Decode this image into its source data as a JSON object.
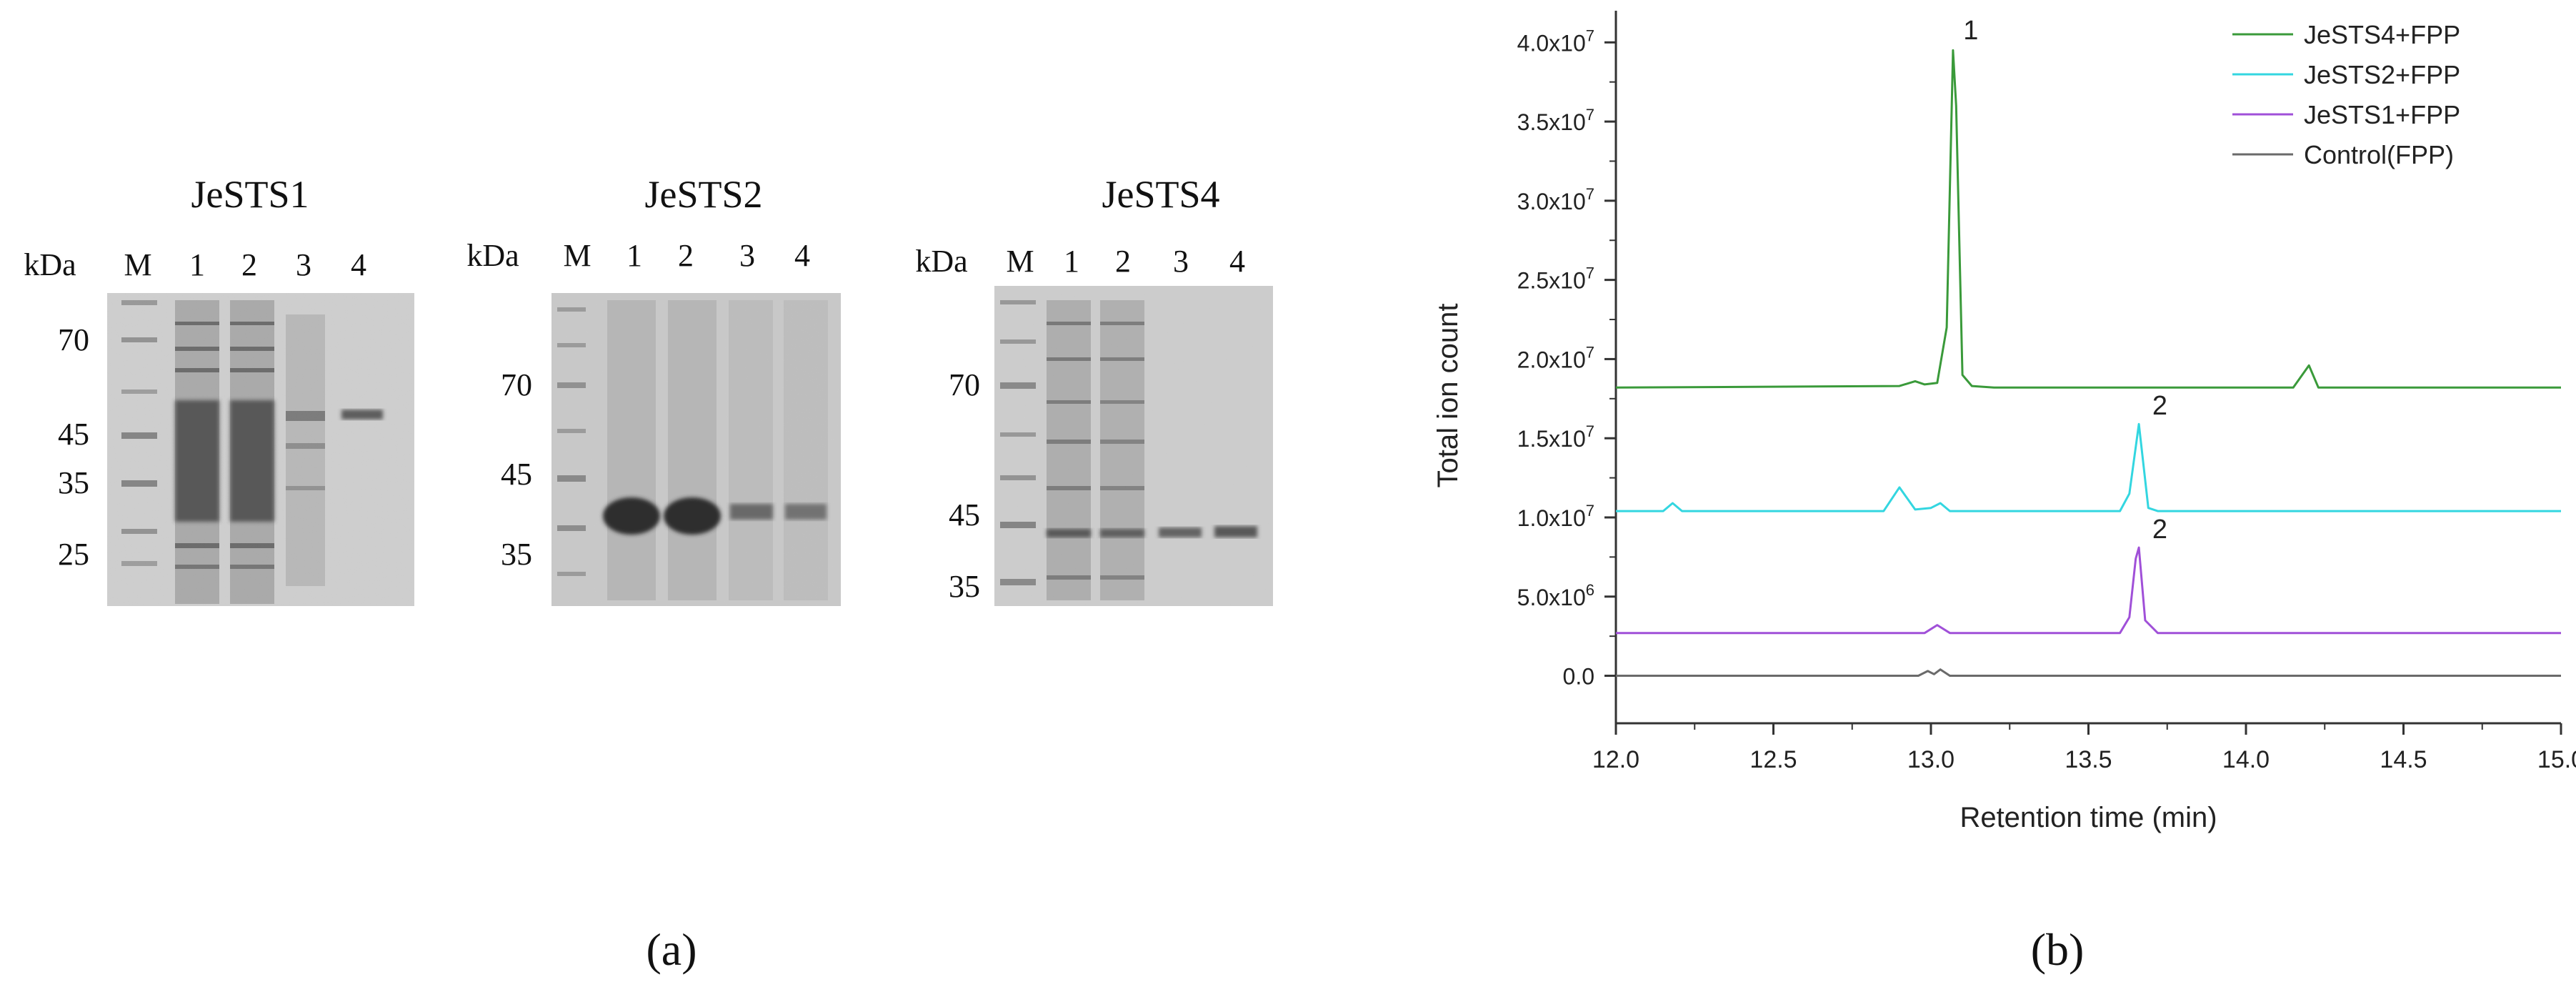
{
  "panel_a": {
    "caption": "(a)",
    "gels": [
      {
        "title": "JeSTS1",
        "unit": "kDa",
        "lanes": [
          "M",
          "1",
          "2",
          "3",
          "4"
        ],
        "markers": [
          "70",
          "45",
          "35",
          "25"
        ]
      },
      {
        "title": "JeSTS2",
        "unit": "kDa",
        "lanes": [
          "M",
          "1",
          "2",
          "3",
          "4"
        ],
        "markers": [
          "70",
          "45",
          "35"
        ]
      },
      {
        "title": "JeSTS4",
        "unit": "kDa",
        "lanes": [
          "M",
          "1",
          "2",
          "3",
          "4"
        ],
        "markers": [
          "70",
          "45",
          "35"
        ]
      }
    ]
  },
  "panel_b": {
    "caption": "(b)"
  },
  "chart_data": {
    "type": "line",
    "title": "",
    "xlabel": "Retention time (min)",
    "ylabel": "Total ion count",
    "xlim": [
      12.0,
      15.0
    ],
    "ylim": [
      -3000000.0,
      42000000.0
    ],
    "x_ticks": [
      "12.0",
      "12.5",
      "13.0",
      "13.5",
      "14.0",
      "14.5",
      "15.0"
    ],
    "y_ticks": [
      {
        "value": 0,
        "mantissa": "0.0",
        "exp": ""
      },
      {
        "value": 5000000,
        "mantissa": "5.0x10",
        "exp": "6"
      },
      {
        "value": 10000000,
        "mantissa": "1.0x10",
        "exp": "7"
      },
      {
        "value": 15000000,
        "mantissa": "1.5x10",
        "exp": "7"
      },
      {
        "value": 20000000,
        "mantissa": "2.0x10",
        "exp": "7"
      },
      {
        "value": 25000000,
        "mantissa": "2.5x10",
        "exp": "7"
      },
      {
        "value": 30000000,
        "mantissa": "3.0x10",
        "exp": "7"
      },
      {
        "value": 35000000,
        "mantissa": "3.5x10",
        "exp": "7"
      },
      {
        "value": 40000000,
        "mantissa": "4.0x10",
        "exp": "7"
      }
    ],
    "legend_position": "top-right",
    "series": [
      {
        "name": "JeSTS4+FPP",
        "color": "#3a9a3a",
        "x": [
          12.0,
          12.9,
          12.95,
          12.98,
          13.02,
          13.05,
          13.07,
          13.08,
          13.1,
          13.13,
          13.2,
          14.15,
          14.2,
          14.23,
          15.0
        ],
        "y": [
          18200000,
          18300000,
          18600000,
          18400000,
          18500000,
          22000000,
          39500000,
          36000000,
          19000000,
          18300000,
          18200000,
          18200000,
          19600000,
          18200000,
          18200000
        ]
      },
      {
        "name": "JeSTS2+FPP",
        "color": "#33d6e0",
        "x": [
          12.0,
          12.15,
          12.18,
          12.21,
          12.85,
          12.9,
          12.95,
          13.0,
          13.03,
          13.06,
          13.6,
          13.63,
          13.66,
          13.69,
          13.72,
          15.0
        ],
        "y": [
          10400000,
          10400000,
          10900000,
          10400000,
          10400000,
          11900000,
          10500000,
          10600000,
          10900000,
          10400000,
          10400000,
          11500000,
          15900000,
          10600000,
          10400000,
          10400000
        ]
      },
      {
        "name": "JeSTS1+FPP",
        "color": "#a050d8",
        "x": [
          12.0,
          12.98,
          13.02,
          13.06,
          13.6,
          13.63,
          13.65,
          13.66,
          13.68,
          13.72,
          15.0
        ],
        "y": [
          2700000,
          2700000,
          3200000,
          2700000,
          2700000,
          3700000,
          7400000,
          8100000,
          3500000,
          2700000,
          2700000
        ]
      },
      {
        "name": "Control(FPP)",
        "color": "#6a6a6a",
        "x": [
          12.0,
          12.96,
          12.99,
          13.01,
          13.03,
          13.06,
          15.0
        ],
        "y": [
          0,
          0,
          300000,
          100000,
          400000,
          0,
          0
        ]
      }
    ],
    "annotations": [
      {
        "text": "1",
        "x": 13.08,
        "y": 40200000
      },
      {
        "text": "2",
        "x": 13.68,
        "y": 16500000
      },
      {
        "text": "2",
        "x": 13.68,
        "y": 8700000
      }
    ]
  }
}
